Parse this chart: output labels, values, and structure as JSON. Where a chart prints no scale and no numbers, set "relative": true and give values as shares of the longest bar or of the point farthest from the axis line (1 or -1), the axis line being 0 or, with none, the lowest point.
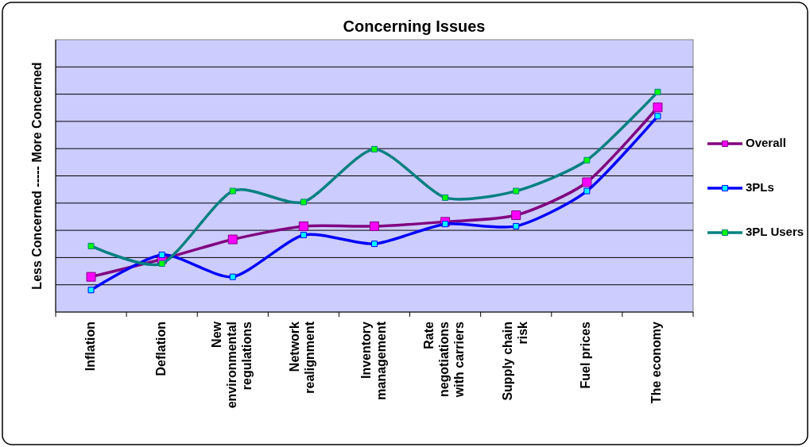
{
  "chart_data": {
    "type": "line",
    "title": "Concerning Issues",
    "ylabel": "Less Concerned ----- More Concerned",
    "categories": [
      "Inflation",
      "Deflation",
      "New environmental regulations",
      "Network realignment",
      "Inventory management",
      "Rate negotiations with carriers",
      "Supply chain risk",
      "Fuel prices",
      "The economy"
    ],
    "relative": true,
    "grid": "y",
    "legend": "right",
    "marker": "square",
    "series": [
      {
        "name": "Overall",
        "color": "#800080",
        "values": [
          0.16,
          0.24,
          0.33,
          0.39,
          0.39,
          0.41,
          0.44,
          0.59,
          0.93
        ]
      },
      {
        "name": "3PLs",
        "color": "#0000ff",
        "values": [
          0.1,
          0.26,
          0.16,
          0.35,
          0.31,
          0.4,
          0.39,
          0.55,
          0.89
        ]
      },
      {
        "name": "3PL Users",
        "color": "#008080",
        "values": [
          0.3,
          0.22,
          0.55,
          0.5,
          0.74,
          0.52,
          0.55,
          0.69,
          1
        ]
      }
    ]
  }
}
